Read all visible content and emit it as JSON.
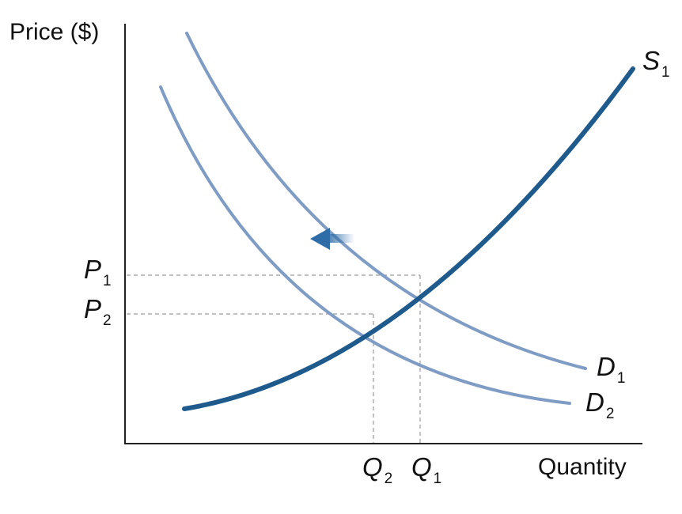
{
  "axes": {
    "y_title": "Price ($)",
    "x_title": "Quantity"
  },
  "curves": {
    "supply": {
      "letter": "S",
      "sub": "1"
    },
    "demand_original": {
      "letter": "D",
      "sub": "1"
    },
    "demand_shifted": {
      "letter": "D",
      "sub": "2"
    }
  },
  "prices": {
    "p1": {
      "letter": "P",
      "sub": "1"
    },
    "p2": {
      "letter": "P",
      "sub": "2"
    }
  },
  "quantities": {
    "q1": {
      "letter": "Q",
      "sub": "1"
    },
    "q2": {
      "letter": "Q",
      "sub": "2"
    }
  },
  "shift_arrow": {
    "direction": "left"
  },
  "colors": {
    "supply": "#1f5a8c",
    "demand": "#7f9cc4",
    "arrow": "#2e6da8",
    "axis": "#222222",
    "guides": "#9a9a9a"
  }
}
